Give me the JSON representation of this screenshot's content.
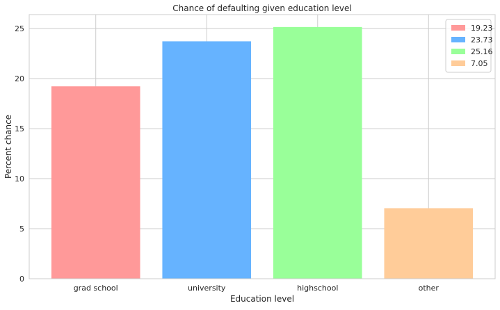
{
  "chart_data": {
    "type": "bar",
    "title": "Chance of defaulting given education level",
    "xlabel": "Education level",
    "ylabel": "Percent chance",
    "categories": [
      "grad school",
      "university",
      "highschool",
      "other"
    ],
    "values": [
      19.23,
      23.73,
      25.16,
      7.05
    ],
    "colors": [
      "#ff9999",
      "#66b3ff",
      "#99ff99",
      "#ffcc99"
    ],
    "legend": [
      "19.23",
      "23.73",
      "25.16",
      "7.05"
    ],
    "legend_position": "top-right",
    "ylim": [
      0,
      26.4
    ],
    "yticks": [
      0,
      5,
      10,
      15,
      20,
      25
    ],
    "grid": true
  }
}
